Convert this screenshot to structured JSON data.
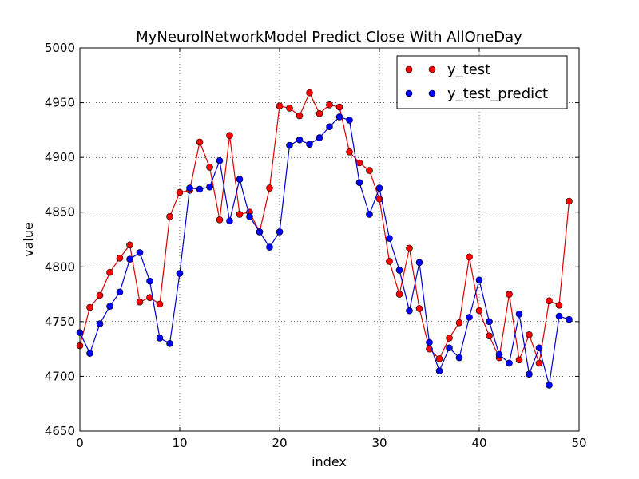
{
  "chart_data": {
    "type": "line",
    "title": "MyNeurolNetworkModel Predict Close With AllOneDay",
    "xlabel": "index",
    "ylabel": "value",
    "xlim": [
      0,
      50
    ],
    "ylim": [
      4650,
      5000
    ],
    "xticks": [
      0,
      10,
      20,
      30,
      40,
      50
    ],
    "yticks": [
      4650,
      4700,
      4750,
      4800,
      4850,
      4900,
      4950,
      5000
    ],
    "grid": true,
    "legend_position": "top-right",
    "x": [
      0,
      1,
      2,
      3,
      4,
      5,
      6,
      7,
      8,
      9,
      10,
      11,
      12,
      13,
      14,
      15,
      16,
      17,
      18,
      19,
      20,
      21,
      22,
      23,
      24,
      25,
      26,
      27,
      28,
      29,
      30,
      31,
      32,
      33,
      34,
      35,
      36,
      37,
      38,
      39,
      40,
      41,
      42,
      43,
      44,
      45,
      46,
      47,
      48,
      49
    ],
    "series": [
      {
        "name": "y_test",
        "color": "#ff0000",
        "line_color": "#dd0000",
        "values": [
          4728,
          4763,
          4774,
          4795,
          4808,
          4820,
          4768,
          4772,
          4766,
          4846,
          4868,
          4870,
          4914,
          4891,
          4843,
          4920,
          4848,
          4850,
          4832,
          4872,
          4947,
          4945,
          4938,
          4959,
          4940,
          4948,
          4946,
          4905,
          4895,
          4888,
          4862,
          4805,
          4775,
          4817,
          4762,
          4725,
          4716,
          4735,
          4749,
          4809,
          4760,
          4737,
          4717,
          4775,
          4715,
          4738,
          4712,
          4769,
          4765,
          4860
        ]
      },
      {
        "name": "y_test_predict",
        "color": "#0000ff",
        "line_color": "#0000cc",
        "values": [
          4740,
          4721,
          4748,
          4764,
          4777,
          4807,
          4813,
          4787,
          4735,
          4730,
          4794,
          4872,
          4871,
          4873,
          4897,
          4842,
          4880,
          4846,
          4832,
          4818,
          4832,
          4911,
          4916,
          4912,
          4918,
          4928,
          4937,
          4934,
          4877,
          4848,
          4872,
          4826,
          4797,
          4760,
          4804,
          4731,
          4705,
          4726,
          4717,
          4754,
          4788,
          4750,
          4720,
          4712,
          4757,
          4702,
          4726,
          4692,
          4755,
          4752
        ]
      }
    ]
  }
}
